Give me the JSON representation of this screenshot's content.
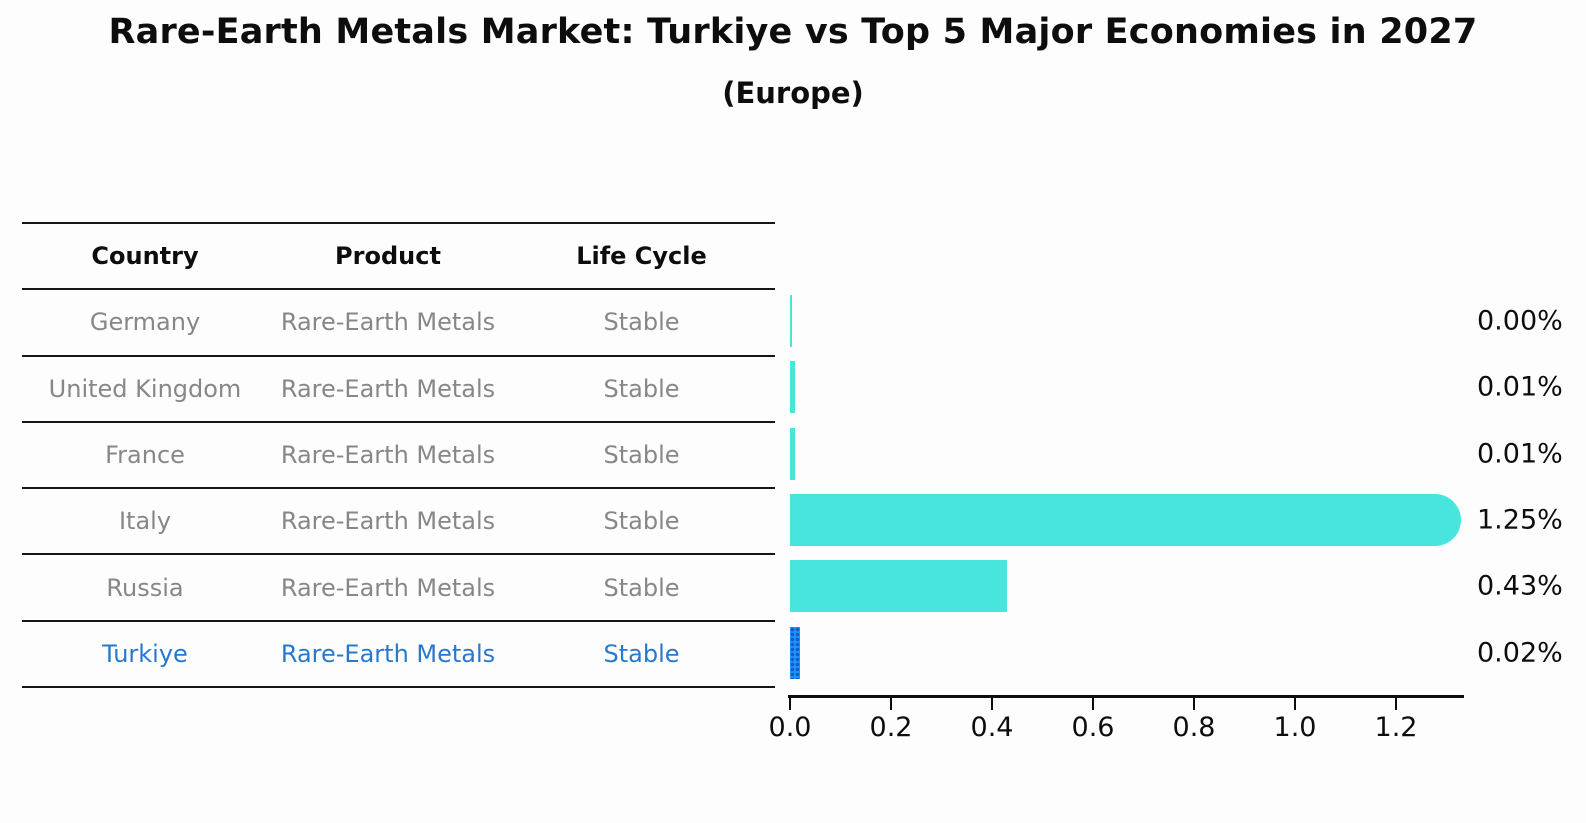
{
  "title": "Rare-Earth Metals Market: Turkiye vs Top 5 Major Economies in 2027",
  "subtitle": "(Europe)",
  "table": {
    "columns": [
      "Country",
      "Product",
      "Life Cycle"
    ],
    "rows": [
      {
        "country": "Germany",
        "product": "Rare-Earth Metals",
        "life_cycle": "Stable",
        "highlighted": false
      },
      {
        "country": "United Kingdom",
        "product": "Rare-Earth Metals",
        "life_cycle": "Stable",
        "highlighted": false
      },
      {
        "country": "France",
        "product": "Rare-Earth Metals",
        "life_cycle": "Stable",
        "highlighted": false
      },
      {
        "country": "Italy",
        "product": "Rare-Earth Metals",
        "life_cycle": "Stable",
        "highlighted": false
      },
      {
        "country": "Russia",
        "product": "Rare-Earth Metals",
        "life_cycle": "Stable",
        "highlighted": false
      },
      {
        "country": "Turkiye",
        "product": "Rare-Earth Metals",
        "life_cycle": "Stable",
        "highlighted": true
      }
    ]
  },
  "chart_data": {
    "type": "bar",
    "orientation": "horizontal",
    "title": "Rare-Earth Metals Market: Turkiye vs Top 5 Major Economies in 2027",
    "subtitle": "(Europe)",
    "categories": [
      "Germany",
      "United Kingdom",
      "France",
      "Italy",
      "Russia",
      "Turkiye"
    ],
    "values": [
      0.0,
      0.01,
      0.01,
      1.25,
      0.43,
      0.02
    ],
    "value_labels": [
      "0.00%",
      "0.01%",
      "0.01%",
      "1.25%",
      "0.43%",
      "0.02%"
    ],
    "xticks": [
      "0.0",
      "0.2",
      "0.4",
      "0.6",
      "0.8",
      "1.0",
      "1.2"
    ],
    "xlim": [
      0,
      1.33
    ],
    "grid": false,
    "legend_position": "none",
    "bar_color": "#48E5DF",
    "highlight_bar_color": "#1E90FF",
    "highlight_dot_color": "#0E5FBF",
    "highlight_text_color": "#2878CE",
    "highlight_index": 5,
    "rounded_index": 3
  }
}
